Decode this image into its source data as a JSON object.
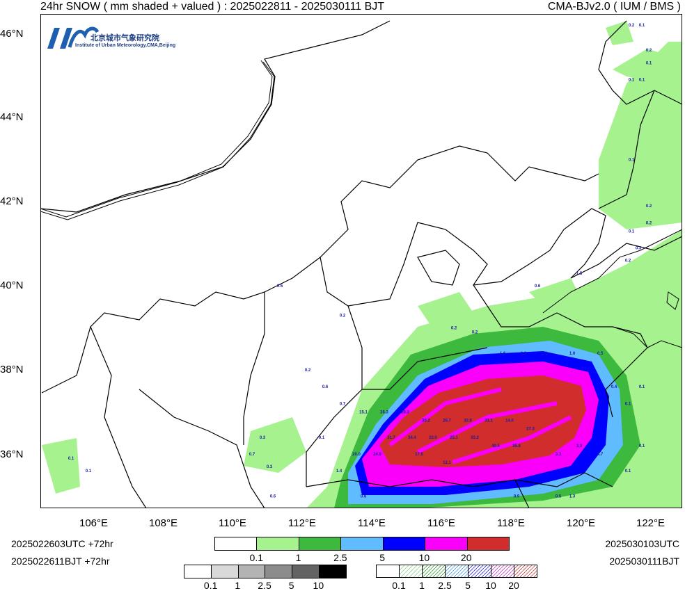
{
  "header": {
    "left_title": "24hr SNOW ( mm shaded + valued ) : 2025022811 - 2025030111 BJT",
    "right_title": "CMA-BJv2.0 ( IUM / BMS )"
  },
  "logo": {
    "mark": "IUM",
    "name_cn": "北京城市气象研究院",
    "name_en": "Institute of Urban Meteorology,CMA,Beijing"
  },
  "axes": {
    "lat_labels": [
      "46°N",
      "44°N",
      "42°N",
      "40°N",
      "38°N",
      "36°N"
    ],
    "lon_labels": [
      "106°E",
      "108°E",
      "110°E",
      "112°E",
      "114°E",
      "116°E",
      "118°E",
      "120°E",
      "122°E"
    ]
  },
  "footer": {
    "init_utc": "2025022603UTC  +72hr",
    "init_bjt": "2025022611BJT  +72hr",
    "valid_utc": "2025030103UTC",
    "valid_bjt": "2025030111BJT"
  },
  "colorbars": {
    "main": {
      "colors": [
        "#ffffff",
        "#a6f28f",
        "#3dba3d",
        "#61bbff",
        "#0000ff",
        "#fa00fa",
        "#d12d2d"
      ],
      "labels": [
        "0.1",
        "1",
        "2.5",
        "5",
        "10",
        "20"
      ]
    },
    "gray": {
      "colors": [
        "#ffffff",
        "#d9d9d9",
        "#b3b3b3",
        "#8c8c8c",
        "#636363",
        "#000000"
      ],
      "labels": [
        "0.1",
        "1",
        "2.5",
        "5",
        "10"
      ]
    },
    "hatch": {
      "labels": [
        "0.1",
        "1",
        "2.5",
        "5",
        "10",
        "20"
      ]
    }
  },
  "value_labels": [
    {
      "lon": 121.3,
      "lat": 46.2,
      "v": "0.2"
    },
    {
      "lon": 121.6,
      "lat": 46.2,
      "v": "0.1"
    },
    {
      "lon": 121.8,
      "lat": 45.6,
      "v": "0.2"
    },
    {
      "lon": 121.8,
      "lat": 45.3,
      "v": "0.1"
    },
    {
      "lon": 121.3,
      "lat": 44.9,
      "v": "0.1"
    },
    {
      "lon": 121.6,
      "lat": 44.9,
      "v": "0.1"
    },
    {
      "lon": 121.3,
      "lat": 43.0,
      "v": "0.1"
    },
    {
      "lon": 121.8,
      "lat": 41.9,
      "v": "0.2"
    },
    {
      "lon": 121.8,
      "lat": 41.5,
      "v": "0.2"
    },
    {
      "lon": 121.3,
      "lat": 41.3,
      "v": "0.1"
    },
    {
      "lon": 121.5,
      "lat": 40.9,
      "v": "0.3"
    },
    {
      "lon": 121.2,
      "lat": 40.6,
      "v": "0.2"
    },
    {
      "lon": 119.8,
      "lat": 40.3,
      "v": "1.5"
    },
    {
      "lon": 118.6,
      "lat": 40.0,
      "v": "0.6"
    },
    {
      "lon": 111.2,
      "lat": 40.0,
      "v": "0.5"
    },
    {
      "lon": 113.0,
      "lat": 39.3,
      "v": "0.2"
    },
    {
      "lon": 116.2,
      "lat": 39.0,
      "v": "0.2"
    },
    {
      "lon": 116.8,
      "lat": 38.9,
      "v": "0.2"
    },
    {
      "lon": 117.6,
      "lat": 38.4,
      "v": "1.6"
    },
    {
      "lon": 118.2,
      "lat": 38.4,
      "v": "3.2"
    },
    {
      "lon": 118.8,
      "lat": 38.4,
      "v": "1.3"
    },
    {
      "lon": 119.6,
      "lat": 38.4,
      "v": "1.0"
    },
    {
      "lon": 120.4,
      "lat": 38.4,
      "v": "0.5"
    },
    {
      "lon": 112.0,
      "lat": 38.0,
      "v": "0.2"
    },
    {
      "lon": 112.5,
      "lat": 37.6,
      "v": "0.6"
    },
    {
      "lon": 113.0,
      "lat": 37.2,
      "v": "0.7"
    },
    {
      "lon": 113.6,
      "lat": 37.0,
      "v": "15.1"
    },
    {
      "lon": 114.2,
      "lat": 37.0,
      "v": "26.3"
    },
    {
      "lon": 114.8,
      "lat": 37.0,
      "v": "20.3"
    },
    {
      "lon": 115.4,
      "lat": 36.8,
      "v": "35.2"
    },
    {
      "lon": 116.0,
      "lat": 36.8,
      "v": "26.7"
    },
    {
      "lon": 116.6,
      "lat": 36.8,
      "v": "32.8"
    },
    {
      "lon": 117.2,
      "lat": 36.8,
      "v": "31.1"
    },
    {
      "lon": 117.8,
      "lat": 36.8,
      "v": "14.0"
    },
    {
      "lon": 118.4,
      "lat": 36.6,
      "v": "27.3"
    },
    {
      "lon": 114.4,
      "lat": 36.4,
      "v": "31.7"
    },
    {
      "lon": 115.0,
      "lat": 36.4,
      "v": "34.4"
    },
    {
      "lon": 115.6,
      "lat": 36.4,
      "v": "22.0"
    },
    {
      "lon": 116.2,
      "lat": 36.4,
      "v": "25.1"
    },
    {
      "lon": 116.8,
      "lat": 36.4,
      "v": "33.2"
    },
    {
      "lon": 117.4,
      "lat": 36.2,
      "v": "40.5"
    },
    {
      "lon": 118.0,
      "lat": 36.2,
      "v": "35.8"
    },
    {
      "lon": 113.4,
      "lat": 36.0,
      "v": "20.0"
    },
    {
      "lon": 114.0,
      "lat": 36.0,
      "v": "24.9"
    },
    {
      "lon": 115.2,
      "lat": 36.0,
      "v": "17.5"
    },
    {
      "lon": 116.0,
      "lat": 35.8,
      "v": "12.1"
    },
    {
      "lon": 119.2,
      "lat": 36.0,
      "v": "3.3"
    },
    {
      "lon": 119.8,
      "lat": 36.2,
      "v": "3.0"
    },
    {
      "lon": 120.4,
      "lat": 36.0,
      "v": "4.7"
    },
    {
      "lon": 110.7,
      "lat": 36.4,
      "v": "0.3"
    },
    {
      "lon": 110.4,
      "lat": 36.0,
      "v": "0.7"
    },
    {
      "lon": 110.9,
      "lat": 35.7,
      "v": "0.3"
    },
    {
      "lon": 105.2,
      "lat": 35.9,
      "v": "0.1"
    },
    {
      "lon": 105.7,
      "lat": 35.6,
      "v": "0.1"
    },
    {
      "lon": 112.4,
      "lat": 36.4,
      "v": "0.1"
    },
    {
      "lon": 112.9,
      "lat": 35.6,
      "v": "1.4"
    },
    {
      "lon": 113.6,
      "lat": 35.0,
      "v": "0.8"
    },
    {
      "lon": 118.0,
      "lat": 35.0,
      "v": "0.9"
    },
    {
      "lon": 119.2,
      "lat": 35.0,
      "v": "0.5"
    },
    {
      "lon": 119.6,
      "lat": 35.0,
      "v": "1.3"
    },
    {
      "lon": 121.2,
      "lat": 35.6,
      "v": "0.1"
    },
    {
      "lon": 121.6,
      "lat": 36.2,
      "v": "0.1"
    },
    {
      "lon": 121.6,
      "lat": 37.6,
      "v": "0.1"
    },
    {
      "lon": 121.2,
      "lat": 37.2,
      "v": "0.1"
    },
    {
      "lon": 120.8,
      "lat": 37.6,
      "v": "0.4"
    },
    {
      "lon": 111.0,
      "lat": 35.0,
      "v": "0.6"
    }
  ]
}
